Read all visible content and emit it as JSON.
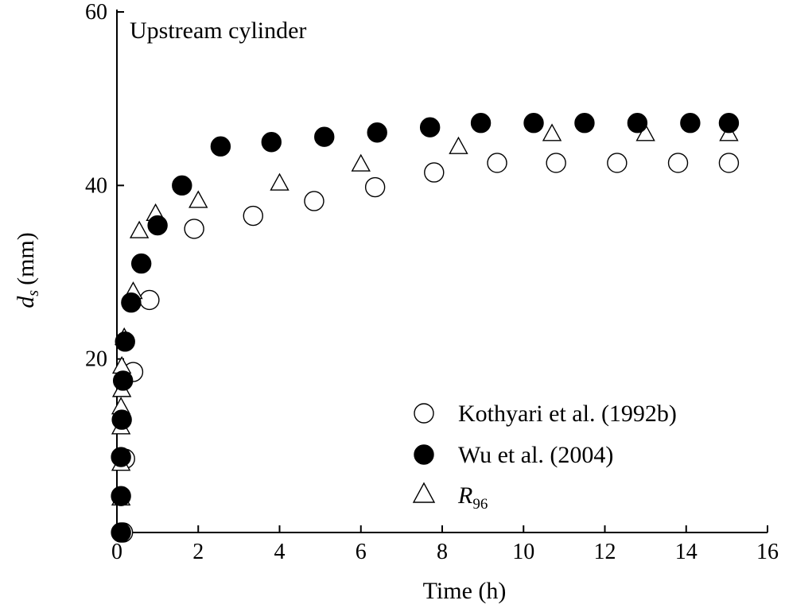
{
  "chart_data": {
    "type": "scatter",
    "annotation": "Upstream cylinder",
    "xlabel": "Time (h)",
    "ylabel": {
      "main": "d",
      "sub": "s",
      "unit": "(mm)"
    },
    "xlim": [
      0,
      16
    ],
    "ylim": [
      0,
      60
    ],
    "xticks": [
      0,
      2,
      4,
      6,
      8,
      10,
      12,
      14,
      16
    ],
    "yticks": [
      20,
      40,
      60
    ],
    "grid": false,
    "legend_position": "bottom-right",
    "series": [
      {
        "name": "Kothyari et al. (1992b)",
        "marker": "open-circle",
        "points": [
          {
            "x": 0.15,
            "y": 0
          },
          {
            "x": 0.2,
            "y": 8.5
          },
          {
            "x": 0.4,
            "y": 18.5
          },
          {
            "x": 0.8,
            "y": 26.8
          },
          {
            "x": 1.9,
            "y": 35.0
          },
          {
            "x": 3.35,
            "y": 36.5
          },
          {
            "x": 4.85,
            "y": 38.2
          },
          {
            "x": 6.35,
            "y": 39.8
          },
          {
            "x": 7.8,
            "y": 41.5
          },
          {
            "x": 9.35,
            "y": 42.6
          },
          {
            "x": 10.8,
            "y": 42.6
          },
          {
            "x": 12.3,
            "y": 42.6
          },
          {
            "x": 13.8,
            "y": 42.6
          },
          {
            "x": 15.05,
            "y": 42.6
          }
        ]
      },
      {
        "name": "Wu et al. (2004)",
        "marker": "filled-circle",
        "points": [
          {
            "x": 0.1,
            "y": 0
          },
          {
            "x": 0.1,
            "y": 4.2
          },
          {
            "x": 0.1,
            "y": 8.7
          },
          {
            "x": 0.12,
            "y": 13.0
          },
          {
            "x": 0.15,
            "y": 17.5
          },
          {
            "x": 0.2,
            "y": 22.0
          },
          {
            "x": 0.35,
            "y": 26.5
          },
          {
            "x": 0.6,
            "y": 31.0
          },
          {
            "x": 1.0,
            "y": 35.4
          },
          {
            "x": 1.6,
            "y": 40.0
          },
          {
            "x": 2.55,
            "y": 44.5
          },
          {
            "x": 3.8,
            "y": 45.0
          },
          {
            "x": 5.1,
            "y": 45.6
          },
          {
            "x": 6.4,
            "y": 46.1
          },
          {
            "x": 7.7,
            "y": 46.7
          },
          {
            "x": 8.95,
            "y": 47.2
          },
          {
            "x": 10.25,
            "y": 47.2
          },
          {
            "x": 11.5,
            "y": 47.2
          },
          {
            "x": 12.8,
            "y": 47.2
          },
          {
            "x": 14.1,
            "y": 47.2
          },
          {
            "x": 15.05,
            "y": 47.2
          }
        ]
      },
      {
        "name": "R",
        "name_subscript": "96",
        "marker": "open-triangle",
        "points": [
          {
            "x": 0.1,
            "y": 4.0
          },
          {
            "x": 0.1,
            "y": 8.0
          },
          {
            "x": 0.1,
            "y": 12.2
          },
          {
            "x": 0.1,
            "y": 14.5
          },
          {
            "x": 0.12,
            "y": 16.5
          },
          {
            "x": 0.12,
            "y": 19.2
          },
          {
            "x": 0.18,
            "y": 22.5
          },
          {
            "x": 0.4,
            "y": 27.8
          },
          {
            "x": 0.55,
            "y": 34.8
          },
          {
            "x": 0.95,
            "y": 36.8
          },
          {
            "x": 2.0,
            "y": 38.3
          },
          {
            "x": 4.0,
            "y": 40.3
          },
          {
            "x": 6.0,
            "y": 42.5
          },
          {
            "x": 8.4,
            "y": 44.5
          },
          {
            "x": 10.7,
            "y": 46.0
          },
          {
            "x": 13.0,
            "y": 46.0
          },
          {
            "x": 15.05,
            "y": 46.0
          }
        ]
      }
    ]
  }
}
